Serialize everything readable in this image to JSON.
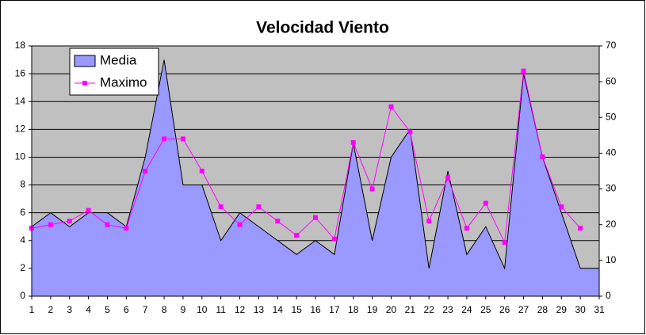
{
  "chart_data": {
    "type": "area-line",
    "title": "Velocidad Viento",
    "categories": [
      "1",
      "2",
      "3",
      "4",
      "5",
      "6",
      "7",
      "8",
      "9",
      "10",
      "11",
      "12",
      "13",
      "14",
      "15",
      "16",
      "17",
      "18",
      "19",
      "20",
      "21",
      "22",
      "23",
      "24",
      "25",
      "26",
      "27",
      "28",
      "29",
      "30",
      "31"
    ],
    "series": [
      {
        "name": "Media",
        "color": "#9999ff",
        "axis": "y",
        "values": [
          5,
          6,
          5,
          6,
          6,
          5,
          10,
          17,
          8,
          8,
          4,
          6,
          5,
          4,
          3,
          4,
          3,
          11,
          4,
          10,
          12,
          2,
          9,
          3,
          5,
          2,
          16,
          10,
          6,
          2,
          2
        ]
      },
      {
        "name": "Maximo",
        "color": "#ff00ff",
        "axis": "y2",
        "values": [
          19,
          20,
          21,
          24,
          20,
          19,
          35,
          44,
          44,
          35,
          25,
          20,
          25,
          21,
          17,
          22,
          16,
          43,
          30,
          53,
          46,
          21,
          33,
          19,
          26,
          15,
          63,
          39,
          25,
          19,
          null
        ]
      }
    ],
    "ylim": [
      0,
      18
    ],
    "yticks": [
      0,
      2,
      4,
      6,
      8,
      10,
      12,
      14,
      16,
      18
    ],
    "y2lim": [
      0,
      70
    ],
    "y2ticks": [
      0,
      10,
      20,
      30,
      40,
      50,
      60,
      70
    ],
    "grid": true,
    "legend": "top-left"
  }
}
